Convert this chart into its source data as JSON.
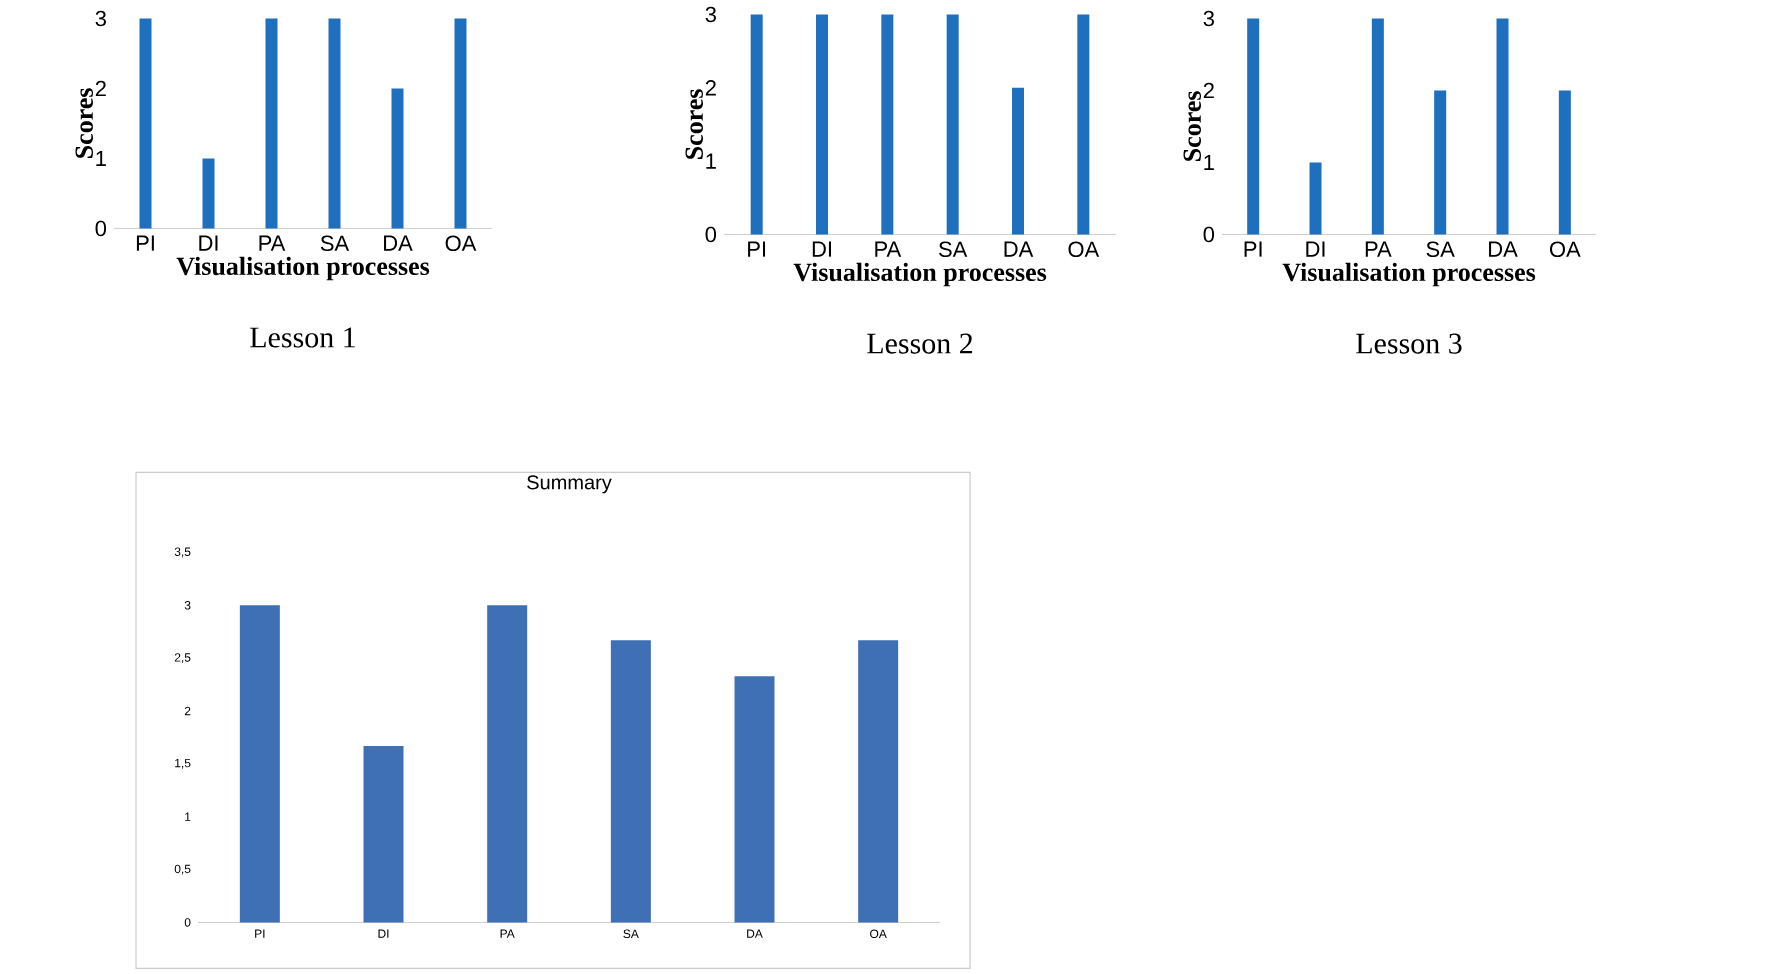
{
  "chart_data": [
    {
      "type": "bar",
      "title": "Lesson 1",
      "xlabel": "Visualisation processes",
      "ylabel": "Scores",
      "categories": [
        "PI",
        "DI",
        "PA",
        "SA",
        "DA",
        "OA"
      ],
      "values": [
        3,
        1,
        3,
        3,
        2,
        3
      ],
      "color": "#1f6fbf",
      "ylim": [
        0,
        3
      ],
      "yticks": [
        0,
        1,
        2,
        3
      ]
    },
    {
      "type": "bar",
      "title": "Lesson 2",
      "xlabel": "Visualisation processes",
      "ylabel": "Scores",
      "categories": [
        "PI",
        "DI",
        "PA",
        "SA",
        "DA",
        "OA"
      ],
      "values": [
        3,
        3,
        3,
        3,
        2,
        3
      ],
      "color": "#1f6fbf",
      "ylim": [
        0,
        3
      ],
      "yticks": [
        0,
        1,
        2,
        3
      ]
    },
    {
      "type": "bar",
      "title": "Lesson 3",
      "xlabel": "Visualisation processes",
      "ylabel": "Scores",
      "categories": [
        "PI",
        "DI",
        "PA",
        "SA",
        "DA",
        "OA"
      ],
      "values": [
        3,
        1,
        3,
        2,
        3,
        2
      ],
      "color": "#1f6fbf",
      "ylim": [
        0,
        3
      ],
      "yticks": [
        0,
        1,
        2,
        3
      ]
    },
    {
      "type": "bar",
      "title": "Summary",
      "categories": [
        "PI",
        "DI",
        "PA",
        "SA",
        "DA",
        "OA"
      ],
      "values": [
        3,
        1.67,
        3,
        2.67,
        2.33,
        2.67
      ],
      "color": "#3f6fb5",
      "ylim": [
        0,
        3.5
      ],
      "yticks": [
        0,
        {
          "value": 0.5,
          "label": "0,5"
        },
        1,
        {
          "value": 1.5,
          "label": "1,5"
        },
        2,
        {
          "value": 2.5,
          "label": "2,5"
        },
        3,
        {
          "value": 3.5,
          "label": "3,5"
        }
      ]
    }
  ]
}
